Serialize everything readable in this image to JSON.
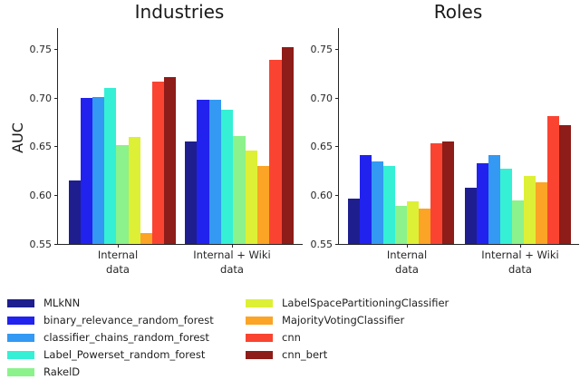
{
  "figure": {
    "background": "#ffffff",
    "axis_color": "#262626"
  },
  "chart_data": [
    {
      "type": "bar",
      "title": "Industries",
      "xlabel": "",
      "ylabel": "AUC",
      "categories": [
        "Internal\ndata",
        "Internal + Wiki\ndata"
      ],
      "yticks": [
        0.55,
        0.6,
        0.65,
        0.7,
        0.75
      ],
      "ylim": [
        0.55,
        0.772
      ],
      "grid": false,
      "legend_position": "bottom",
      "series": [
        {
          "name": "MLkNN",
          "color": "#1e1e8f",
          "values": [
            0.615,
            0.655
          ]
        },
        {
          "name": "binary_relevance_random_forest",
          "color": "#2222ee",
          "values": [
            0.7,
            0.698
          ]
        },
        {
          "name": "classifier_chains_random_forest",
          "color": "#3399f3",
          "values": [
            0.701,
            0.698
          ]
        },
        {
          "name": "Label_Powerset_random_forest",
          "color": "#35f0d5",
          "values": [
            0.71,
            0.688
          ]
        },
        {
          "name": "RakelD",
          "color": "#8cf28c",
          "values": [
            0.652,
            0.661
          ]
        },
        {
          "name": "LabelSpacePartitioningClassifier",
          "color": "#ddf036",
          "values": [
            0.66,
            0.646
          ]
        },
        {
          "name": "MajorityVotingClassifier",
          "color": "#fba426",
          "values": [
            0.561,
            0.63
          ]
        },
        {
          "name": "cnn",
          "color": "#fa4431",
          "values": [
            0.717,
            0.739
          ]
        },
        {
          "name": "cnn_bert",
          "color": "#8e1c18",
          "values": [
            0.722,
            0.752
          ]
        }
      ]
    },
    {
      "type": "bar",
      "title": "Roles",
      "xlabel": "",
      "ylabel": "",
      "categories": [
        "Internal\ndata",
        "Internal + Wiki\ndata"
      ],
      "yticks": [
        0.55,
        0.6,
        0.65,
        0.7,
        0.75
      ],
      "ylim": [
        0.55,
        0.772
      ],
      "grid": false,
      "legend_position": "bottom",
      "series": [
        {
          "name": "MLkNN",
          "color": "#1e1e8f",
          "values": [
            0.597,
            0.608
          ]
        },
        {
          "name": "binary_relevance_random_forest",
          "color": "#2222ee",
          "values": [
            0.641,
            0.633
          ]
        },
        {
          "name": "classifier_chains_random_forest",
          "color": "#3399f3",
          "values": [
            0.635,
            0.641
          ]
        },
        {
          "name": "Label_Powerset_random_forest",
          "color": "#35f0d5",
          "values": [
            0.63,
            0.627
          ]
        },
        {
          "name": "RakelD",
          "color": "#8cf28c",
          "values": [
            0.589,
            0.595
          ]
        },
        {
          "name": "LabelSpacePartitioningClassifier",
          "color": "#ddf036",
          "values": [
            0.594,
            0.62
          ]
        },
        {
          "name": "MajorityVotingClassifier",
          "color": "#fba426",
          "values": [
            0.586,
            0.613
          ]
        },
        {
          "name": "cnn",
          "color": "#fa4431",
          "values": [
            0.654,
            0.682
          ]
        },
        {
          "name": "cnn_bert",
          "color": "#8e1c18",
          "values": [
            0.655,
            0.672
          ]
        }
      ]
    }
  ]
}
